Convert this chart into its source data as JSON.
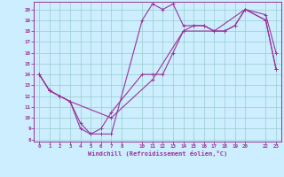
{
  "xlabel": "Windchill (Refroidissement éolien,°C)",
  "bg_color": "#cceeff",
  "line_color": "#993399",
  "grid_color": "#99cccc",
  "xlim": [
    -0.5,
    23.5
  ],
  "ylim": [
    7.8,
    20.7
  ],
  "xticks": [
    0,
    1,
    2,
    3,
    4,
    5,
    6,
    7,
    8,
    10,
    11,
    12,
    13,
    14,
    15,
    16,
    17,
    18,
    19,
    20,
    22,
    23
  ],
  "yticks": [
    8,
    9,
    10,
    11,
    12,
    13,
    14,
    15,
    16,
    17,
    18,
    19,
    20
  ],
  "line1_x": [
    0,
    1,
    2,
    3,
    4,
    5,
    6,
    7,
    10,
    11,
    12,
    13,
    14,
    15,
    16,
    17,
    18,
    19,
    20,
    22,
    23
  ],
  "line1_y": [
    14,
    12.5,
    12,
    11.5,
    9.0,
    8.5,
    8.5,
    8.5,
    19.0,
    20.5,
    20.0,
    20.5,
    18.5,
    18.5,
    18.5,
    18.0,
    18.0,
    18.5,
    20.0,
    19.0,
    14.5
  ],
  "line2_x": [
    0,
    1,
    2,
    3,
    4,
    5,
    6,
    7,
    10,
    11,
    12,
    13,
    14,
    15,
    16,
    17,
    18,
    19,
    20,
    22,
    23
  ],
  "line2_y": [
    14,
    12.5,
    12,
    11.5,
    9.5,
    8.5,
    9.0,
    10.5,
    14.0,
    14.0,
    14.0,
    16.0,
    18.0,
    18.5,
    18.5,
    18.0,
    18.0,
    18.5,
    20.0,
    19.5,
    16.0
  ],
  "line3_x": [
    0,
    1,
    3,
    7,
    11,
    14,
    17,
    20,
    22,
    23
  ],
  "line3_y": [
    14,
    12.5,
    11.5,
    10.0,
    13.5,
    18.0,
    18.0,
    20.0,
    19.0,
    14.5
  ]
}
